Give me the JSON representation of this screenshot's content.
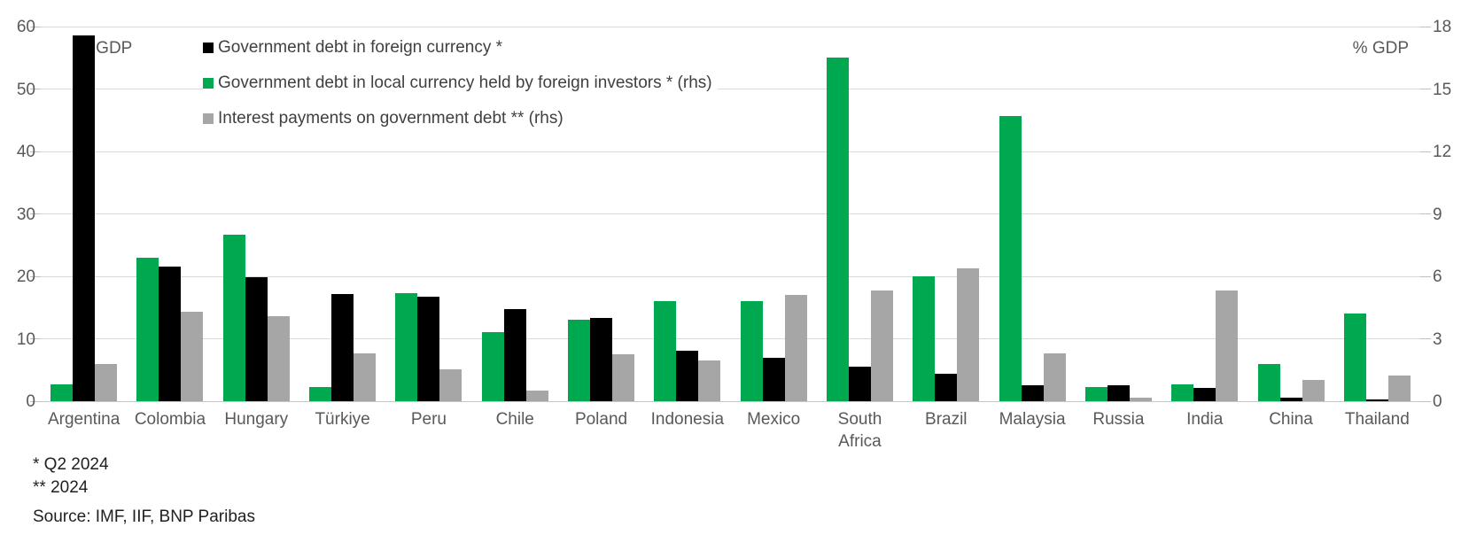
{
  "chart_data": {
    "type": "bar",
    "title": "",
    "unit_label_left": "% GDP",
    "unit_label_right": "% GDP",
    "left_axis": {
      "min": 0,
      "max": 60,
      "ticks": [
        0,
        10,
        20,
        30,
        40,
        50,
        60
      ]
    },
    "right_axis": {
      "min": 0,
      "max": 18,
      "ticks": [
        0,
        3,
        6,
        9,
        12,
        15,
        18
      ]
    },
    "grid": true,
    "legend_position": "top-left",
    "bar_order": [
      1,
      0,
      2
    ],
    "categories": [
      "Argentina",
      "Colombia",
      "Hungary",
      "Türkiye",
      "Peru",
      "Chile",
      "Poland",
      "Indonesia",
      "Mexico",
      "South Africa",
      "Brazil",
      "Malaysia",
      "Russia",
      "India",
      "China",
      "Thailand"
    ],
    "series": [
      {
        "key": "foreign-currency-debt",
        "name": "Government debt in foreign currency *",
        "axis": "left",
        "color": "#000000",
        "values": [
          58.6,
          21.6,
          19.8,
          17.1,
          16.7,
          14.8,
          13.4,
          8.1,
          6.9,
          5.6,
          4.4,
          2.6,
          2.5,
          2.1,
          0.6,
          0.3
        ]
      },
      {
        "key": "local-currency-debt-foreign-investors",
        "name": "Government debt in local currency held by foreign investors * (rhs)",
        "axis": "right",
        "color": "#00a94f",
        "values": [
          0.8,
          6.9,
          8.0,
          0.7,
          5.2,
          3.3,
          3.9,
          4.8,
          4.8,
          16.5,
          6.0,
          13.7,
          0.7,
          0.8,
          1.8,
          4.2
        ]
      },
      {
        "key": "interest-payments",
        "name": "Interest payments on government debt ** (rhs)",
        "axis": "right",
        "color": "#a6a6a6",
        "values": [
          1.8,
          4.3,
          4.1,
          2.3,
          1.55,
          0.5,
          2.25,
          1.95,
          5.1,
          5.3,
          6.4,
          2.3,
          0.15,
          5.3,
          1.0,
          1.25
        ]
      }
    ]
  },
  "footnotes": {
    "line1": "* Q2 2024",
    "line2": "** 2024",
    "source": "Source: IMF, IIF, BNP Paribas"
  },
  "colors": {
    "gridline": "#d9d9d9",
    "axis_text": "#595959",
    "legend_text": "#404040",
    "footnote_text": "#1f1f1f"
  }
}
